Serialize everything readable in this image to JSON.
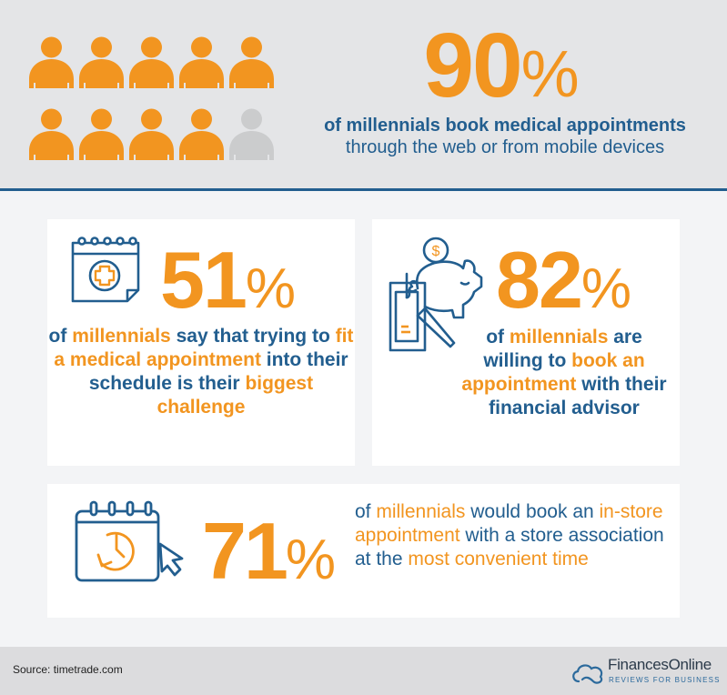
{
  "colors": {
    "orange": "#f29520",
    "blue": "#225e8f",
    "header_bg": "#e4e5e7",
    "page_bg": "#f3f4f6",
    "card_bg": "#ffffff",
    "grey_person": "#cbcccd",
    "footer_bg": "#dcdcde"
  },
  "header": {
    "people_icons": {
      "total": 10,
      "highlighted": 9,
      "icon": "person-icon"
    },
    "stat_number": "90",
    "stat_percent": "%",
    "description_bold": "of millennials book medical appointments",
    "description_line2": "through the web or from mobile devices"
  },
  "cards": [
    {
      "icon": "medical-calendar-icon",
      "stat_number": "51",
      "stat_percent": "%",
      "text_parts": [
        {
          "text": "of ",
          "color": "blue"
        },
        {
          "text": "millennials",
          "color": "orange"
        },
        {
          "text": " say that trying to ",
          "color": "blue"
        },
        {
          "text": "fit a medical appointment",
          "color": "orange"
        },
        {
          "text": " into their schedule is their ",
          "color": "blue"
        },
        {
          "text": "biggest challenge",
          "color": "orange"
        }
      ]
    },
    {
      "icon": "piggy-bank-clipboard-icon",
      "stat_number": "82",
      "stat_percent": "%",
      "text_parts": [
        {
          "text": "of ",
          "color": "blue"
        },
        {
          "text": "millennials",
          "color": "orange"
        },
        {
          "text": " are willing to ",
          "color": "blue"
        },
        {
          "text": "book an appointment",
          "color": "orange"
        },
        {
          "text": " with their financial advisor",
          "color": "blue"
        }
      ]
    },
    {
      "icon": "calendar-clock-cursor-icon",
      "stat_number": "71",
      "stat_percent": "%",
      "text_parts": [
        {
          "text": "of ",
          "color": "blue"
        },
        {
          "text": "millennials",
          "color": "orange"
        },
        {
          "text": " would book an ",
          "color": "blue"
        },
        {
          "text": "in-store appointment",
          "color": "orange"
        },
        {
          "text": " with a store association at the ",
          "color": "blue"
        },
        {
          "text": "most convenient time",
          "color": "orange"
        }
      ]
    }
  ],
  "footer": {
    "source": "Source: timetrade.com",
    "logo_name": "FinancesOnline",
    "logo_tagline": "REVIEWS FOR BUSINESS",
    "logo_icon": "cloud-icon"
  }
}
